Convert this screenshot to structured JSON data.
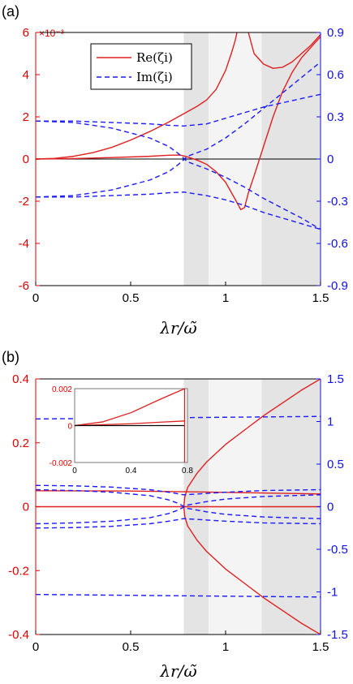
{
  "colors": {
    "re": "#e02020",
    "im": "#1a1aff",
    "band_dark": "#e4e4e4",
    "band_light": "#f4f4f4",
    "left_axis": "#e00000",
    "right_axis": "#1010ee"
  },
  "chart_data": [
    {
      "type": "line",
      "panel_label": "(a)",
      "xlabel": "λr/ω̃",
      "xlim": [
        0,
        1.5
      ],
      "x_ticks": [
        "0",
        "0.5",
        "1",
        "1.5"
      ],
      "ylim_left": [
        -6,
        6
      ],
      "left_multiplier": "×10⁻³",
      "y_ticks_left": [
        "-6",
        "-4",
        "-2",
        "0",
        "2",
        "4",
        "6"
      ],
      "ylim_right": [
        -0.9,
        0.9
      ],
      "y_ticks_right": [
        "-0.9",
        "-0.6",
        "-0.3",
        "0",
        "0.3",
        "0.6",
        "0.9"
      ],
      "bands": [
        {
          "x0": 0.78,
          "x1": 0.91,
          "shade": "dark"
        },
        {
          "x0": 0.91,
          "x1": 1.19,
          "shade": "light"
        },
        {
          "x0": 1.19,
          "x1": 1.5,
          "shade": "dark"
        }
      ],
      "legend": {
        "position": "top-center",
        "entries": [
          "Re(ζi)",
          "Im(ζi)"
        ]
      },
      "series": [
        {
          "name": "Re(ζi)",
          "axis": "left",
          "style": "solid",
          "x": [
            0,
            0.1,
            0.2,
            0.3,
            0.4,
            0.5,
            0.6,
            0.7,
            0.78,
            0.85,
            0.9,
            0.95,
            1.0,
            1.03,
            1.05,
            1.06
          ],
          "y": [
            0,
            0.03,
            0.13,
            0.3,
            0.55,
            0.9,
            1.3,
            1.75,
            2.15,
            2.5,
            2.8,
            3.3,
            4.2,
            5.0,
            5.6,
            6.0
          ]
        },
        {
          "name": "Re(ζi)",
          "axis": "left",
          "style": "solid",
          "x": [
            1.12,
            1.15,
            1.2,
            1.25,
            1.3,
            1.35,
            1.4,
            1.45,
            1.5
          ],
          "y": [
            6.0,
            5.0,
            4.5,
            4.3,
            4.35,
            4.6,
            5.0,
            5.4,
            5.9
          ]
        },
        {
          "name": "Re(ζi)",
          "axis": "left",
          "style": "solid",
          "x": [
            0,
            0.2,
            0.4,
            0.6,
            0.7,
            0.76,
            0.8,
            0.85,
            0.9,
            0.95,
            1.0,
            1.05,
            1.08,
            1.1,
            1.12,
            1.15,
            1.2,
            1.25,
            1.3,
            1.35,
            1.4,
            1.45,
            1.5
          ],
          "y": [
            0,
            0.02,
            0.07,
            0.13,
            0.18,
            0.19,
            0.1,
            -0.05,
            -0.25,
            -0.6,
            -1.1,
            -1.9,
            -2.4,
            -2.3,
            -1.6,
            -0.8,
            0.6,
            2.0,
            3.2,
            4.1,
            4.8,
            5.3,
            5.8
          ]
        },
        {
          "name": "Im(ζi)",
          "axis": "right",
          "style": "dashed",
          "x": [
            0,
            0.2,
            0.4,
            0.6,
            0.7,
            0.78,
            0.9,
            1.0,
            1.1,
            1.2,
            1.3,
            1.4,
            1.5
          ],
          "y": [
            0.27,
            0.27,
            0.26,
            0.25,
            0.24,
            0.235,
            0.25,
            0.29,
            0.33,
            0.37,
            0.4,
            0.43,
            0.46
          ]
        },
        {
          "name": "Im(ζi)",
          "axis": "right",
          "style": "dashed",
          "x": [
            0,
            0.2,
            0.4,
            0.6,
            0.7,
            0.75,
            0.8,
            0.9,
            1.0,
            1.1,
            1.2,
            1.3,
            1.4,
            1.5
          ],
          "y": [
            0.27,
            0.26,
            0.22,
            0.15,
            0.09,
            0.04,
            -0.02,
            -0.07,
            -0.13,
            -0.2,
            -0.28,
            -0.35,
            -0.42,
            -0.5
          ]
        },
        {
          "name": "Im(ζi)",
          "axis": "right",
          "style": "dashed",
          "x": [
            0,
            0.2,
            0.4,
            0.6,
            0.7,
            0.75,
            0.8,
            0.9,
            1.0,
            1.1,
            1.2,
            1.3,
            1.4,
            1.5
          ],
          "y": [
            -0.27,
            -0.26,
            -0.22,
            -0.15,
            -0.09,
            -0.04,
            0.02,
            0.07,
            0.15,
            0.25,
            0.36,
            0.47,
            0.58,
            0.69
          ]
        },
        {
          "name": "Im(ζi)",
          "axis": "right",
          "style": "dashed",
          "x": [
            0,
            0.2,
            0.4,
            0.6,
            0.7,
            0.78,
            0.9,
            1.0,
            1.1,
            1.2,
            1.3,
            1.4,
            1.5
          ],
          "y": [
            -0.27,
            -0.27,
            -0.26,
            -0.25,
            -0.24,
            -0.235,
            -0.26,
            -0.29,
            -0.33,
            -0.38,
            -0.42,
            -0.46,
            -0.5
          ]
        }
      ]
    },
    {
      "type": "line",
      "panel_label": "(b)",
      "xlabel": "λr/ω̃",
      "xlim": [
        0,
        1.5
      ],
      "x_ticks": [
        "0",
        "0.5",
        "1",
        "1.5"
      ],
      "ylim_left": [
        -0.4,
        0.4
      ],
      "y_ticks_left": [
        "-0.4",
        "-0.2",
        "0",
        "0.2",
        "0.4"
      ],
      "ylim_right": [
        -1.5,
        1.5
      ],
      "y_ticks_right": [
        "-1.5",
        "-1",
        "-0.5",
        "0",
        "0.5",
        "1",
        "1.5"
      ],
      "bands": [
        {
          "x0": 0.78,
          "x1": 0.91,
          "shade": "dark"
        },
        {
          "x0": 0.91,
          "x1": 1.19,
          "shade": "light"
        },
        {
          "x0": 1.19,
          "x1": 1.5,
          "shade": "dark"
        }
      ],
      "series": [
        {
          "name": "Re(ζi)",
          "axis": "left",
          "style": "solid",
          "x": [
            0,
            0.5,
            1.0,
            1.5
          ],
          "y": [
            0.05,
            0.049,
            0.045,
            0.04
          ]
        },
        {
          "name": "Re(ζi)",
          "axis": "left",
          "style": "solid",
          "x": [
            0,
            0.78,
            1.5
          ],
          "y": [
            0,
            0,
            0
          ]
        },
        {
          "name": "Re(ζi)",
          "axis": "left",
          "style": "solid",
          "x": [
            0.78,
            0.785,
            0.8,
            0.85,
            0.9,
            1.0,
            1.1,
            1.2,
            1.3,
            1.4,
            1.5
          ],
          "y": [
            0,
            0.03,
            0.06,
            0.105,
            0.14,
            0.195,
            0.24,
            0.285,
            0.325,
            0.365,
            0.4
          ]
        },
        {
          "name": "Re(ζi)",
          "axis": "left",
          "style": "solid",
          "x": [
            0.78,
            0.785,
            0.8,
            0.85,
            0.9,
            1.0,
            1.1,
            1.2,
            1.3,
            1.4,
            1.5
          ],
          "y": [
            0,
            -0.03,
            -0.06,
            -0.105,
            -0.14,
            -0.195,
            -0.24,
            -0.285,
            -0.325,
            -0.365,
            -0.4
          ]
        },
        {
          "name": "Im(ζi)",
          "axis": "right",
          "style": "dashed",
          "x": [
            0,
            0.5,
            1.0,
            1.5
          ],
          "y": [
            1.03,
            1.04,
            1.05,
            1.06
          ]
        },
        {
          "name": "Im(ζi)",
          "axis": "right",
          "style": "dashed",
          "x": [
            0,
            0.5,
            1.0,
            1.5
          ],
          "y": [
            -1.03,
            -1.04,
            -1.05,
            -1.06
          ]
        },
        {
          "name": "Im(ζi)",
          "axis": "right",
          "style": "dashed",
          "x": [
            0,
            0.2,
            0.4,
            0.6,
            0.7,
            0.78,
            1.0,
            1.2,
            1.5
          ],
          "y": [
            0.25,
            0.245,
            0.23,
            0.2,
            0.17,
            0.14,
            0.17,
            0.19,
            0.2
          ]
        },
        {
          "name": "Im(ζi)",
          "axis": "right",
          "style": "dashed",
          "x": [
            0,
            0.2,
            0.4,
            0.6,
            0.7,
            0.75,
            0.8,
            0.9,
            1.0,
            1.2,
            1.5
          ],
          "y": [
            0.2,
            0.19,
            0.17,
            0.13,
            0.08,
            0.04,
            -0.02,
            -0.06,
            -0.09,
            -0.12,
            -0.14
          ]
        },
        {
          "name": "Im(ζi)",
          "axis": "right",
          "style": "dashed",
          "x": [
            0,
            0.2,
            0.4,
            0.6,
            0.7,
            0.75,
            0.8,
            0.9,
            1.0,
            1.2,
            1.5
          ],
          "y": [
            -0.2,
            -0.19,
            -0.17,
            -0.13,
            -0.08,
            -0.04,
            0.02,
            0.06,
            0.09,
            0.12,
            0.14
          ]
        },
        {
          "name": "Im(ζi)",
          "axis": "right",
          "style": "dashed",
          "x": [
            0,
            0.2,
            0.4,
            0.6,
            0.7,
            0.78,
            1.0,
            1.2,
            1.5
          ],
          "y": [
            -0.25,
            -0.245,
            -0.23,
            -0.2,
            -0.17,
            -0.14,
            -0.17,
            -0.19,
            -0.2
          ]
        }
      ],
      "inset": {
        "xlim": [
          0,
          0.8
        ],
        "x_ticks": [
          "0",
          "0.4",
          "0.8"
        ],
        "ylim": [
          -0.002,
          0.002
        ],
        "y_ticks": [
          "-0.002",
          "0",
          "0.002"
        ],
        "series": [
          {
            "x": [
              0,
              0.2,
              0.4,
              0.6,
              0.78
            ],
            "y": [
              0,
              0.0002,
              0.0007,
              0.0014,
              0.002
            ]
          },
          {
            "x": [
              0,
              0.2,
              0.4,
              0.6,
              0.78
            ],
            "y": [
              0,
              5e-05,
              0.0001,
              0.00018,
              0.00025
            ]
          },
          {
            "x": [
              0,
              0.78
            ],
            "y": [
              0,
              0
            ]
          }
        ]
      }
    }
  ]
}
